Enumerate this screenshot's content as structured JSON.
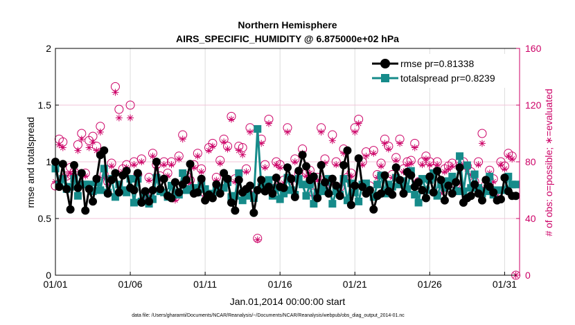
{
  "colors": {
    "rmse": "#000000",
    "totalspread": "#168b8a",
    "obs": "#cc0066",
    "grid": "#dcdcdc",
    "axis": "#000000"
  },
  "chart_data": {
    "type": "line",
    "title": "Northern Hemisphere",
    "subtitle": "AIRS_SPECIFIC_HUMIDITY @ 6.875000e+02 hPa",
    "xlabel": "Jan.01,2014 00:00:00 start",
    "ylabel_left": "rmse and totalspread",
    "ylabel_right": "# of obs: o=possible; ∗=evaluated",
    "xlim": [
      1,
      32
    ],
    "ylim_left": [
      0,
      2
    ],
    "ylim_right": [
      0,
      160
    ],
    "grid": true,
    "legend_position": "top-right",
    "x_ticks": [
      {
        "value": 1,
        "label": "01/01"
      },
      {
        "value": 6,
        "label": "01/06"
      },
      {
        "value": 11,
        "label": "01/11"
      },
      {
        "value": 16,
        "label": "01/16"
      },
      {
        "value": 21,
        "label": "01/21"
      },
      {
        "value": 26,
        "label": "01/26"
      },
      {
        "value": 31,
        "label": "01/31"
      }
    ],
    "y_ticks_left": [
      {
        "value": 0,
        "label": "0"
      },
      {
        "value": 0.5,
        "label": "0.5"
      },
      {
        "value": 1,
        "label": "1"
      },
      {
        "value": 1.5,
        "label": "1.5"
      },
      {
        "value": 2,
        "label": "2"
      }
    ],
    "y_ticks_right": [
      {
        "value": 0,
        "label": "0"
      },
      {
        "value": 40,
        "label": "40"
      },
      {
        "value": 80,
        "label": "80"
      },
      {
        "value": 120,
        "label": "120"
      },
      {
        "value": 160,
        "label": "160"
      }
    ],
    "x": [
      1.0,
      1.25,
      1.5,
      1.75,
      2.0,
      2.25,
      2.5,
      2.75,
      3.0,
      3.25,
      3.5,
      3.75,
      4.0,
      4.25,
      4.5,
      4.75,
      5.0,
      5.25,
      5.5,
      5.75,
      6.0,
      6.25,
      6.5,
      6.75,
      7.0,
      7.25,
      7.5,
      7.75,
      8.0,
      8.25,
      8.5,
      8.75,
      9.0,
      9.25,
      9.5,
      9.75,
      10.0,
      10.25,
      10.5,
      10.75,
      11.0,
      11.25,
      11.5,
      11.75,
      12.0,
      12.25,
      12.5,
      12.75,
      13.0,
      13.25,
      13.5,
      13.75,
      14.0,
      14.25,
      14.5,
      14.75,
      15.0,
      15.25,
      15.5,
      15.75,
      16.0,
      16.25,
      16.5,
      16.75,
      17.0,
      17.25,
      17.5,
      17.75,
      18.0,
      18.25,
      18.5,
      18.75,
      19.0,
      19.25,
      19.5,
      19.75,
      20.0,
      20.25,
      20.5,
      20.75,
      21.0,
      21.25,
      21.5,
      21.75,
      22.0,
      22.25,
      22.5,
      22.75,
      23.0,
      23.25,
      23.5,
      23.75,
      24.0,
      24.25,
      24.5,
      24.75,
      25.0,
      25.25,
      25.5,
      25.75,
      26.0,
      26.25,
      26.5,
      26.75,
      27.0,
      27.25,
      27.5,
      27.75,
      28.0,
      28.25,
      28.5,
      28.75,
      29.0,
      29.25,
      29.5,
      29.75,
      30.0,
      30.25,
      30.5,
      30.75,
      31.0,
      31.25,
      31.5,
      31.75
    ],
    "series": [
      {
        "name": "rmse",
        "legend_label": "rmse pr=0.81338",
        "axis": "left",
        "values": [
          1.0,
          0.78,
          0.98,
          0.76,
          0.58,
          0.97,
          0.77,
          0.9,
          0.57,
          0.76,
          0.65,
          0.85,
          1.06,
          1.1,
          0.72,
          0.84,
          0.9,
          0.73,
          0.88,
          0.92,
          0.77,
          0.75,
          0.9,
          0.64,
          0.74,
          0.65,
          0.75,
          1.0,
          0.76,
          0.85,
          0.7,
          0.68,
          0.82,
          0.73,
          0.8,
          0.84,
          0.98,
          0.72,
          0.73,
          0.85,
          0.66,
          0.71,
          0.68,
          0.8,
          0.72,
          0.9,
          0.85,
          0.64,
          0.57,
          0.84,
          0.73,
          0.76,
          0.79,
          0.55,
          0.75,
          0.84,
          0.74,
          0.78,
          0.72,
          0.86,
          0.78,
          0.77,
          0.95,
          0.85,
          0.69,
          0.92,
          1.06,
          0.96,
          0.84,
          0.87,
          0.68,
          0.97,
          0.82,
          0.72,
          0.85,
          0.79,
          0.7,
          0.97,
          1.1,
          0.62,
          0.79,
          1.03,
          0.78,
          0.72,
          0.75,
          0.58,
          0.7,
          0.72,
          0.88,
          0.74,
          0.71,
          0.95,
          0.84,
          0.72,
          0.91,
          0.88,
          0.78,
          0.82,
          0.75,
          0.68,
          0.87,
          0.73,
          0.92,
          0.84,
          0.66,
          0.79,
          0.72,
          0.82,
          0.95,
          0.64,
          0.68,
          0.7,
          0.8,
          0.72,
          0.66,
          0.84,
          0.78,
          0.73,
          0.66,
          0.67,
          0.86,
          0.74,
          0.7,
          0.7
        ],
        "marker": "circle"
      },
      {
        "name": "totalspread",
        "legend_label": "totalspread pr=0.8239",
        "axis": "left",
        "values": [
          0.94,
          0.8,
          0.85,
          0.76,
          0.78,
          0.85,
          0.7,
          0.8,
          0.8,
          0.8,
          0.74,
          0.82,
          0.75,
          0.94,
          0.73,
          0.85,
          0.69,
          0.8,
          0.75,
          0.73,
          0.85,
          0.64,
          0.85,
          0.65,
          0.72,
          0.63,
          0.67,
          0.86,
          0.74,
          0.73,
          0.69,
          0.79,
          0.73,
          0.71,
          0.9,
          0.75,
          0.76,
          0.77,
          0.73,
          0.8,
          0.76,
          0.71,
          0.72,
          0.77,
          0.76,
          0.77,
          0.82,
          0.69,
          0.7,
          0.9,
          0.66,
          0.72,
          0.7,
          0.68,
          1.29,
          0.78,
          0.8,
          0.84,
          0.7,
          0.77,
          0.67,
          0.72,
          0.86,
          0.75,
          0.71,
          0.85,
          0.8,
          0.7,
          0.8,
          0.63,
          0.73,
          0.78,
          0.74,
          0.85,
          0.63,
          0.74,
          0.71,
          0.85,
          0.66,
          0.81,
          0.73,
          0.65,
          0.8,
          0.81,
          0.74,
          0.69,
          0.8,
          0.88,
          0.72,
          0.8,
          0.78,
          0.86,
          0.8,
          0.83,
          0.76,
          0.92,
          0.71,
          0.64,
          0.85,
          0.75,
          0.84,
          0.9,
          0.7,
          0.8,
          0.77,
          0.83,
          0.87,
          0.74,
          1.05,
          0.74,
          0.97,
          0.77,
          0.89,
          0.77,
          0.72,
          0.74,
          0.87,
          0.71,
          0.75,
          0.75,
          0.75,
          0.87,
          0.8,
          0.8
        ],
        "marker": "square"
      },
      {
        "name": "obs_possible",
        "axis": "right",
        "marker": "open-circle",
        "values": [
          63,
          96,
          94,
          70,
          76,
          73,
          92,
          100,
          72,
          95,
          98,
          91,
          105,
          71,
          66,
          79,
          133,
          117,
          75,
          78,
          120,
          80,
          71,
          82,
          57,
          69,
          86,
          78,
          70,
          80,
          72,
          80,
          55,
          84,
          99,
          70,
          67,
          78,
          86,
          75,
          58,
          90,
          93,
          69,
          81,
          96,
          91,
          112,
          68,
          91,
          90,
          75,
          104,
          60,
          26,
          96,
          78,
          110,
          64,
          80,
          78,
          67,
          104,
          68,
          82,
          72,
          89,
          72,
          74,
          58,
          69,
          104,
          82,
          66,
          99,
          80,
          62,
          89,
          69,
          72,
          104,
          110,
          80,
          87,
          63,
          88,
          71,
          79,
          96,
          91,
          71,
          83,
          96,
          75,
          80,
          81,
          93,
          66,
          80,
          84,
          80,
          75,
          80,
          60,
          75,
          77,
          79,
          64,
          80,
          80,
          77,
          73,
          66,
          80,
          100,
          64,
          74,
          68,
          58,
          80,
          77,
          86,
          84,
          0
        ]
      },
      {
        "name": "obs_evaluated",
        "axis": "right",
        "marker": "asterisk",
        "values": [
          66,
          92,
          90,
          70,
          72,
          73,
          88,
          96,
          70,
          90,
          94,
          88,
          101,
          69,
          64,
          77,
          129,
          111,
          73,
          76,
          111,
          78,
          69,
          80,
          55,
          67,
          84,
          76,
          68,
          78,
          70,
          78,
          53,
          82,
          96,
          68,
          65,
          76,
          84,
          73,
          56,
          88,
          91,
          67,
          79,
          94,
          89,
          110,
          66,
          88,
          85,
          73,
          101,
          58,
          25,
          93,
          76,
          107,
          62,
          78,
          76,
          65,
          101,
          66,
          80,
          70,
          86,
          70,
          72,
          56,
          67,
          101,
          79,
          64,
          95,
          78,
          60,
          86,
          67,
          70,
          101,
          107,
          78,
          84,
          61,
          86,
          69,
          77,
          93,
          89,
          69,
          81,
          93,
          73,
          78,
          79,
          90,
          64,
          78,
          82,
          78,
          73,
          78,
          58,
          73,
          75,
          77,
          62,
          78,
          78,
          75,
          71,
          64,
          78,
          93,
          62,
          72,
          66,
          56,
          78,
          75,
          84,
          82,
          0
        ]
      }
    ]
  },
  "footer": "data file: /Users/gharamti/Documents/NCAR/Reanalysis/~/Documents/NCAR/Reanalysis/webpub/obs_diag_output_2014-01.nc"
}
